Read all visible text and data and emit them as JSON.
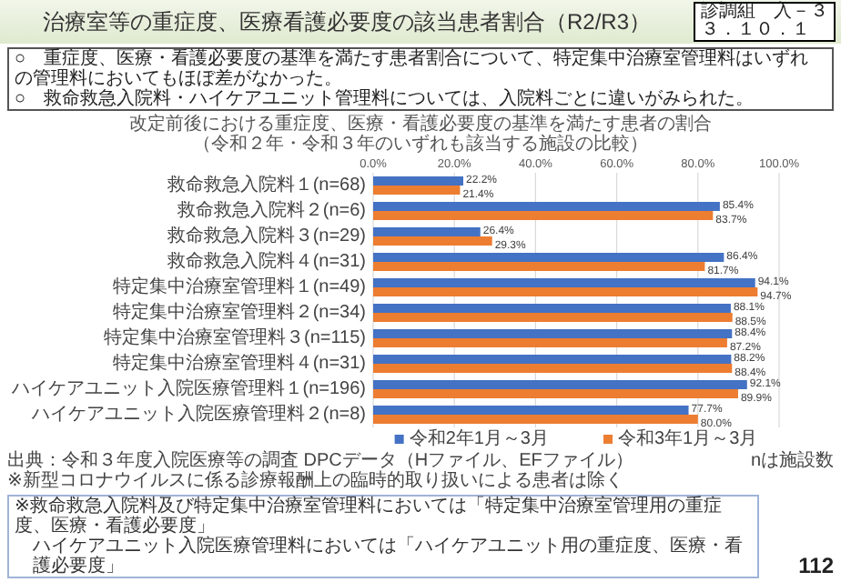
{
  "chart_data": {
    "type": "bar",
    "orientation": "horizontal",
    "title": "改定前後における重症度、医療・看護必要度の基準を満たす患者の割合",
    "subtitle": "（令和２年・令和３年のいずれも該当する施設の比較）",
    "categories": [
      "救命救急入院料１(n=68)",
      "救命救急入院料２(n=6)",
      "救命救急入院料３(n=29)",
      "救命救急入院料４(n=31)",
      "特定集中治療室管理料１(n=49)",
      "特定集中治療室管理料２(n=34)",
      "特定集中治療室管理料３(n=115)",
      "特定集中治療室管理料４(n=31)",
      "ハイケアユニット入院医療管理料１(n=196)",
      "ハイケアユニット入院医療管理料２(n=8)"
    ],
    "series": [
      {
        "name": "令和2年1月～3月",
        "color": "#4472c4",
        "values": [
          22.2,
          85.4,
          26.4,
          86.4,
          94.1,
          88.1,
          88.4,
          88.2,
          92.1,
          77.7
        ],
        "value_labels": [
          "22.2%",
          "85.4%",
          "26.4%",
          "86.4%",
          "94.1%",
          "88.1%",
          "88.4%",
          "88.2%",
          "92.1%",
          "77.7%"
        ]
      },
      {
        "name": "令和3年1月～3月",
        "color": "#ed7d31",
        "values": [
          21.4,
          83.7,
          29.3,
          81.7,
          94.7,
          88.5,
          87.2,
          88.4,
          89.9,
          80.0
        ],
        "value_labels": [
          "21.4%",
          "83.7%",
          "29.3%",
          "81.7%",
          "94.7%",
          "88.5%",
          "87.2%",
          "88.4%",
          "89.9%",
          "80.0%"
        ]
      }
    ],
    "xlim": [
      0,
      100
    ],
    "xticks": [
      {
        "value": 0,
        "label": "0.0%"
      },
      {
        "value": 20,
        "label": "20.0%"
      },
      {
        "value": 40,
        "label": "40.0%"
      },
      {
        "value": 60,
        "label": "60.0%"
      },
      {
        "value": 80,
        "label": "80.0%"
      },
      {
        "value": 100,
        "label": "100.0%"
      }
    ],
    "grid": "x",
    "legend": "bottom",
    "annotations": [
      "治療室等の重症度、医療看護必要度の該当患者割合（R2/R3）",
      "診調組　入－３",
      "３．１０．１",
      "○　重症度、医療・看護必要度の基準を満たす患者割合について、特定集中治療室管理料はいずれの管理料においてもほぼ差がなかった。",
      "○　救命救急入院料・ハイケアユニット管理料については、入院料ごとに違いがみられた。",
      "出典：令和３年度入院医療等の調査 DPCデータ（Hファイル、EFファイル）",
      "nは施設数",
      "※新型コロナウイルスに係る診療報酬上の臨時的取り扱いによる患者は除く",
      "※救命救急入院料及び特定集中治療室管理料においては「特定集中治療室管理用の重症度、医療・看護必要度」",
      "ハイケアユニット入院医療管理料においては「ハイケアユニット用の重症度、医療・看護必要度」",
      "112"
    ]
  }
}
